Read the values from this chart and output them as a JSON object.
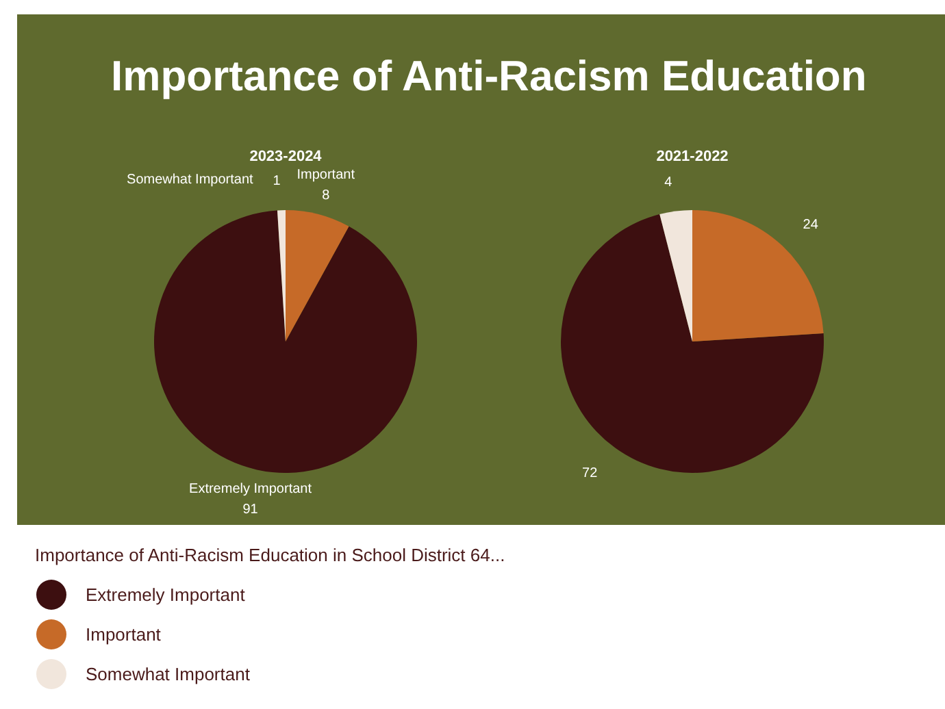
{
  "chart_data": [
    {
      "type": "pie",
      "title": "2023-2024",
      "annotations": [
        "Importance of Anti-Racism Education"
      ],
      "categories": [
        "Extremely Important",
        "Important",
        "Somewhat Important"
      ],
      "values": [
        91,
        8,
        1
      ],
      "colors": [
        "#3d0f10",
        "#c66a28",
        "#f1e6dc"
      ],
      "data_labels": true,
      "legend": "bottom",
      "legend_title": "Importance of Anti-Racism Education in School District 64..."
    },
    {
      "type": "pie",
      "title": "2021-2022",
      "categories": [
        null,
        null,
        null
      ],
      "values": [
        72,
        24,
        4
      ],
      "colors": [
        "#3d0f10",
        "#c66a28",
        "#f1e6dc"
      ],
      "data_labels": true
    }
  ]
}
